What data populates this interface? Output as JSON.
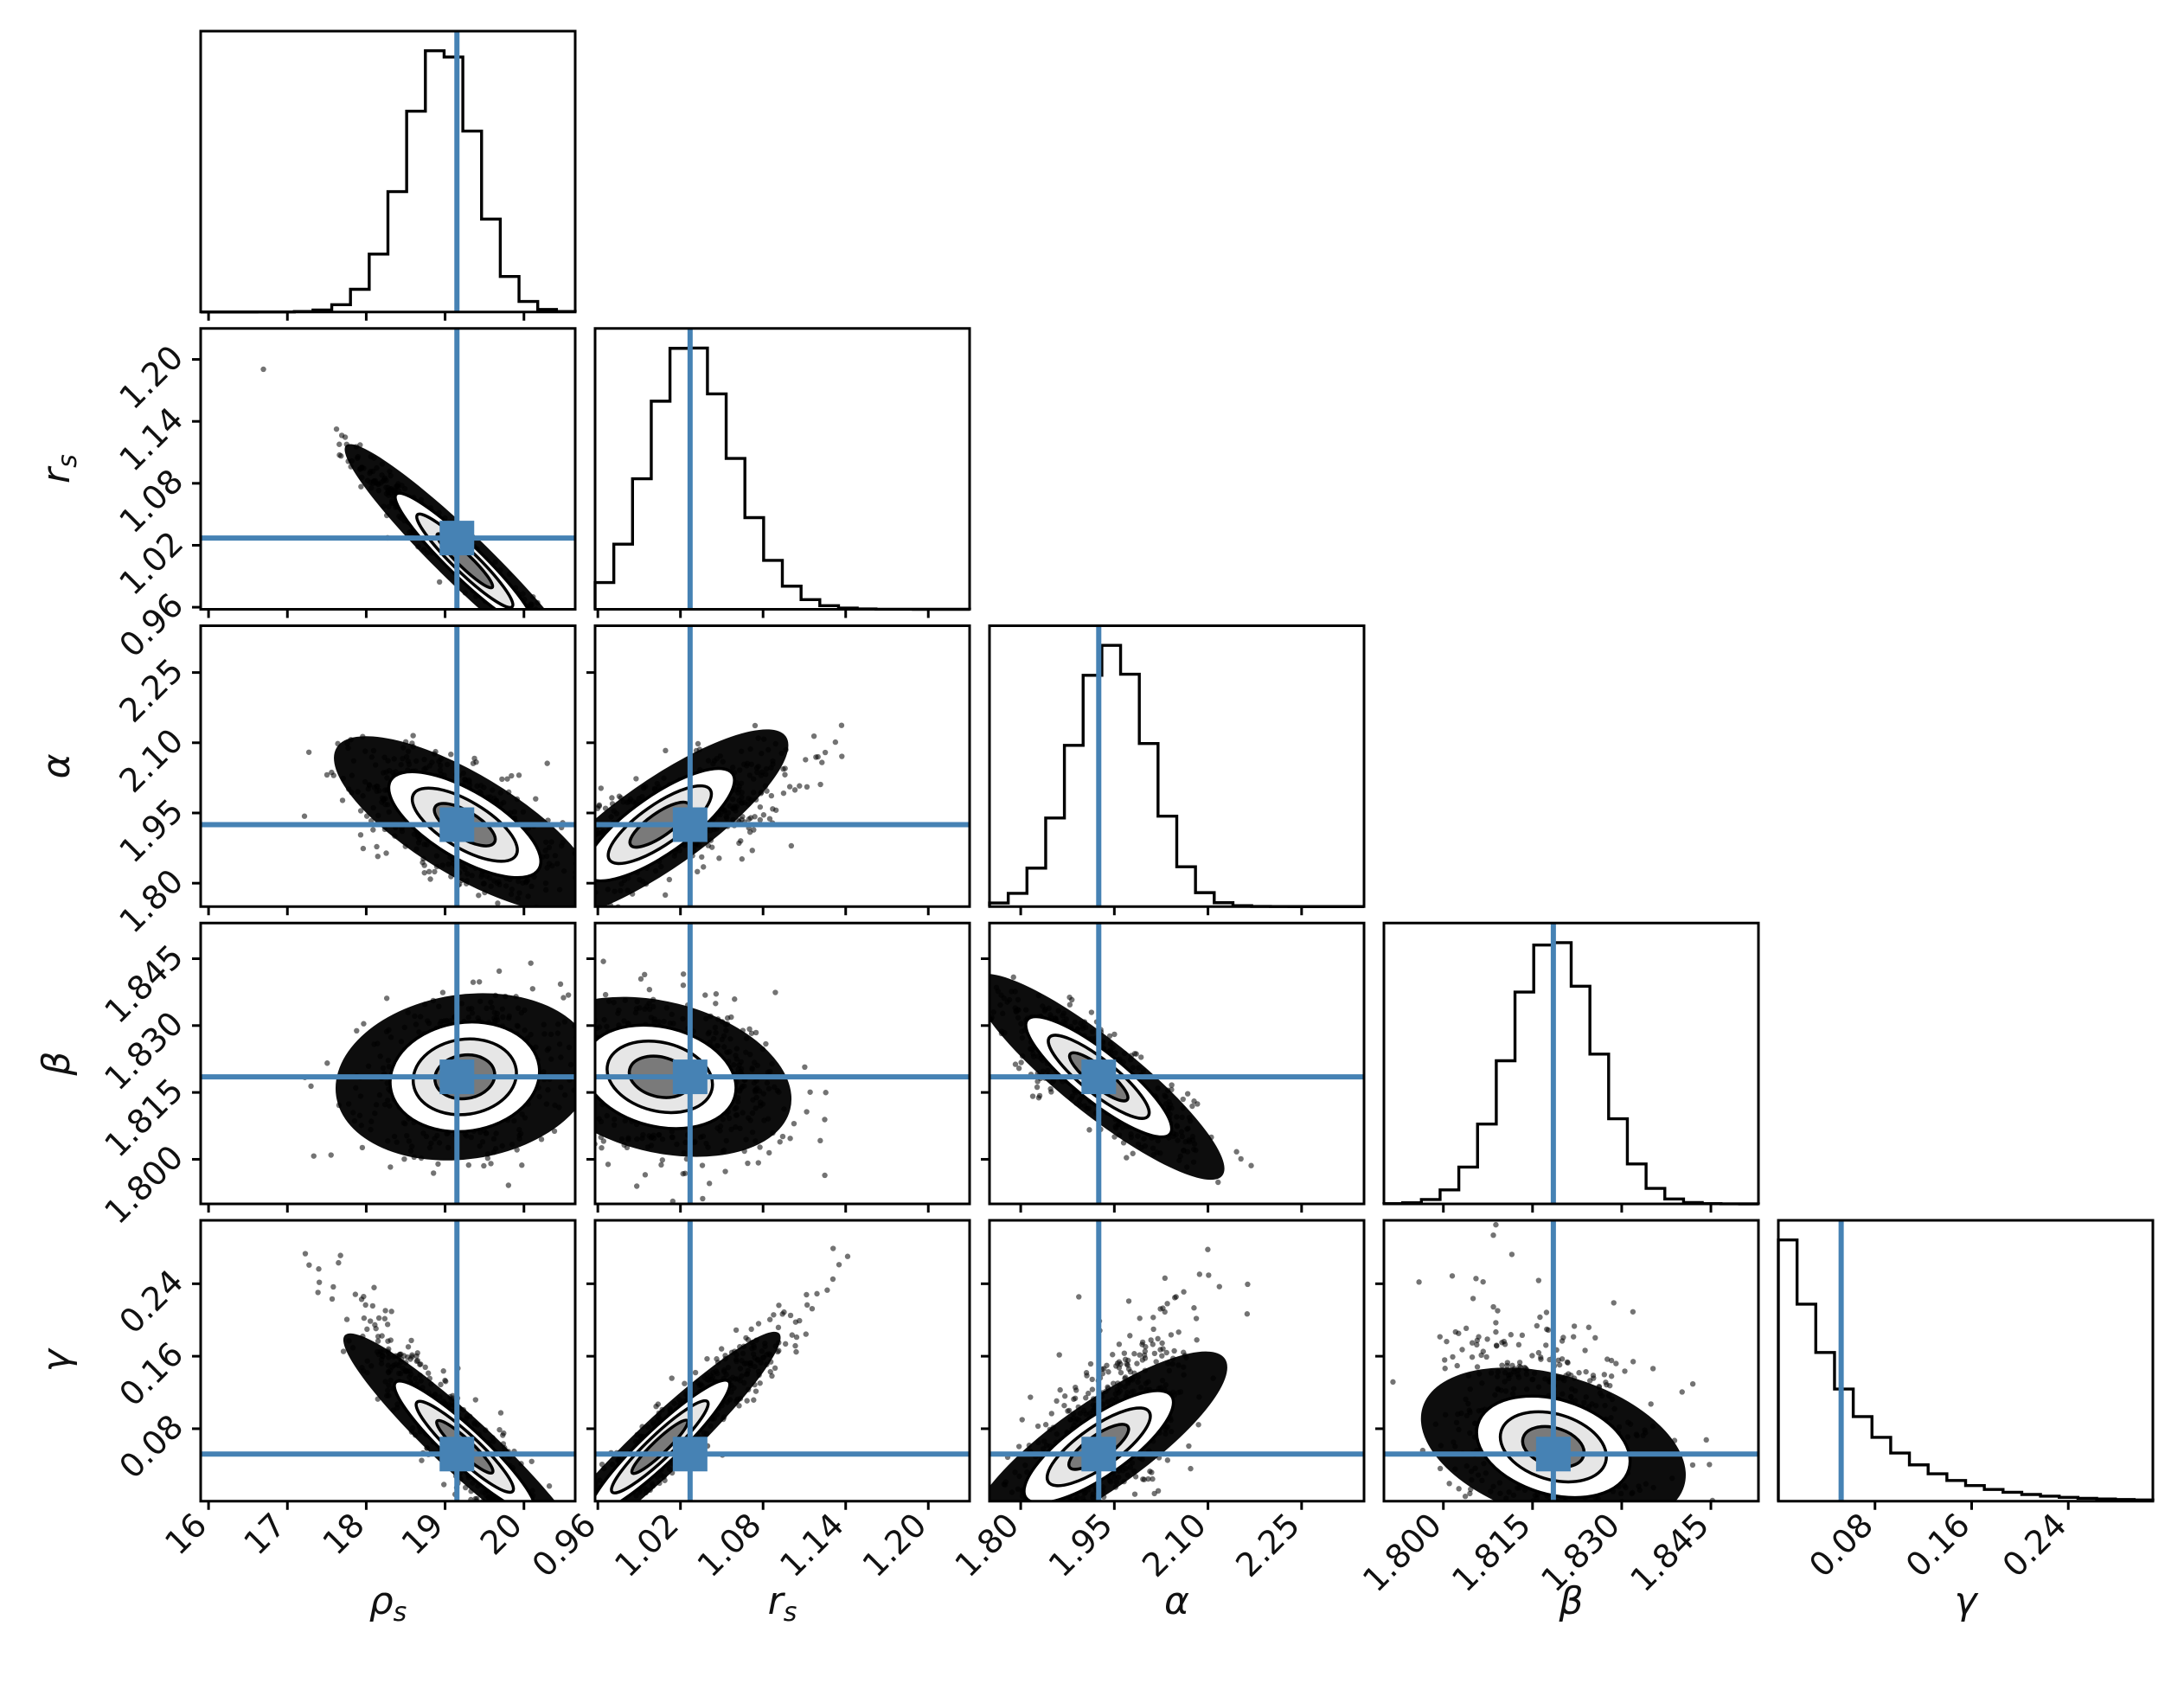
{
  "chart_data": {
    "type": "corner",
    "parameters": [
      {
        "key": "rho_s",
        "label": "ρ",
        "sub": "s",
        "ticks": [
          "16",
          "17",
          "18",
          "19",
          "20"
        ],
        "tick_values": [
          16,
          17,
          18,
          19,
          20
        ],
        "range": [
          15.9,
          20.65
        ],
        "truth": 19.15,
        "mean": 19.25,
        "sd": 0.55,
        "skew": -5
      },
      {
        "key": "r_s",
        "label": "r",
        "sub": "s",
        "ticks": [
          "0.96",
          "1.02",
          "1.08",
          "1.14",
          "1.20"
        ],
        "tick_values": [
          0.96,
          1.02,
          1.08,
          1.14,
          1.2
        ],
        "range": [
          0.958,
          1.23
        ],
        "truth": 1.027,
        "mean": 1.005,
        "sd": 0.04,
        "skew": 6
      },
      {
        "key": "alpha",
        "label": "α",
        "sub": "",
        "ticks": [
          "1.80",
          "1.95",
          "2.10",
          "2.25"
        ],
        "tick_values": [
          1.8,
          1.95,
          2.1,
          2.25
        ],
        "range": [
          1.75,
          2.35
        ],
        "truth": 1.925,
        "mean": 1.925,
        "sd": 0.065,
        "skew": 2
      },
      {
        "key": "beta",
        "label": "β",
        "sub": "",
        "ticks": [
          "1.800",
          "1.815",
          "1.830",
          "1.845"
        ],
        "tick_values": [
          1.8,
          1.815,
          1.83,
          1.845
        ],
        "range": [
          1.79,
          1.853
        ],
        "truth": 1.8185,
        "mean": 1.8185,
        "sd": 0.0072,
        "skew": 0
      },
      {
        "key": "gamma",
        "label": "γ",
        "sub": "",
        "ticks": [
          "0.08",
          "0.16",
          "0.24"
        ],
        "tick_values": [
          0.08,
          0.16,
          0.24
        ],
        "range": [
          0.0,
          0.31
        ],
        "truth": 0.052,
        "mean": 0.0,
        "sd": 0.06,
        "skew": 0
      }
    ],
    "correlations": [
      [
        1.0,
        -0.97,
        -0.6,
        0.15,
        -0.93
      ],
      [
        -0.97,
        1.0,
        0.7,
        -0.25,
        0.95
      ],
      [
        -0.6,
        0.7,
        1.0,
        -0.8,
        0.7
      ],
      [
        0.15,
        -0.25,
        -0.8,
        1.0,
        -0.3
      ],
      [
        -0.93,
        0.95,
        0.7,
        -0.3,
        1.0
      ]
    ],
    "truth_color": "#4682b4",
    "contour_color": "#000000",
    "grid": false
  }
}
